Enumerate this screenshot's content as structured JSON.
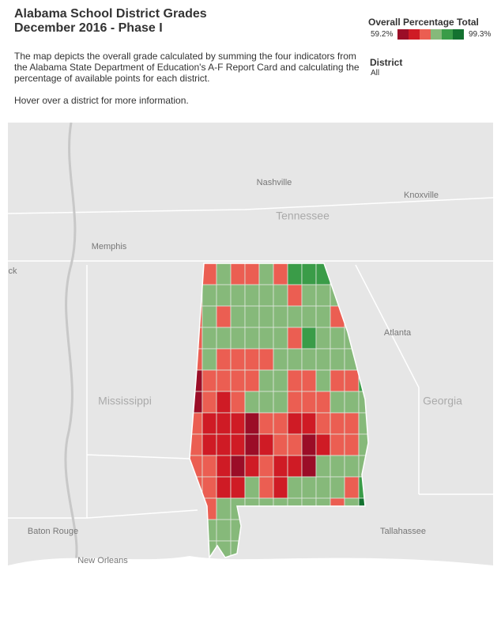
{
  "header": {
    "title_line1": "Alabama School District Grades",
    "title_line2": "December 2016 - Phase I",
    "description": "The map depicts the overall grade calculated by summing the four indicators from the Alabama State Department of Education's A-F Report Card and calculating the percentage of available points for each district.",
    "hint": "Hover over a district for more information."
  },
  "legend": {
    "title": "Overall Percentage Total",
    "min": "59.2%",
    "max": "99.3%"
  },
  "filter": {
    "title": "District",
    "value": "All"
  },
  "map_labels": {
    "nashville": "Nashville",
    "knoxville": "Knoxville",
    "tennessee": "Tennessee",
    "memphis": "Memphis",
    "atlanta": "Atlanta",
    "mississippi": "Mississippi",
    "georgia": "Georgia",
    "baton_rouge": "Baton Rouge",
    "new_orleans": "New Orleans",
    "tallahassee": "Tallahassee",
    "partial_left": "ck"
  }
}
